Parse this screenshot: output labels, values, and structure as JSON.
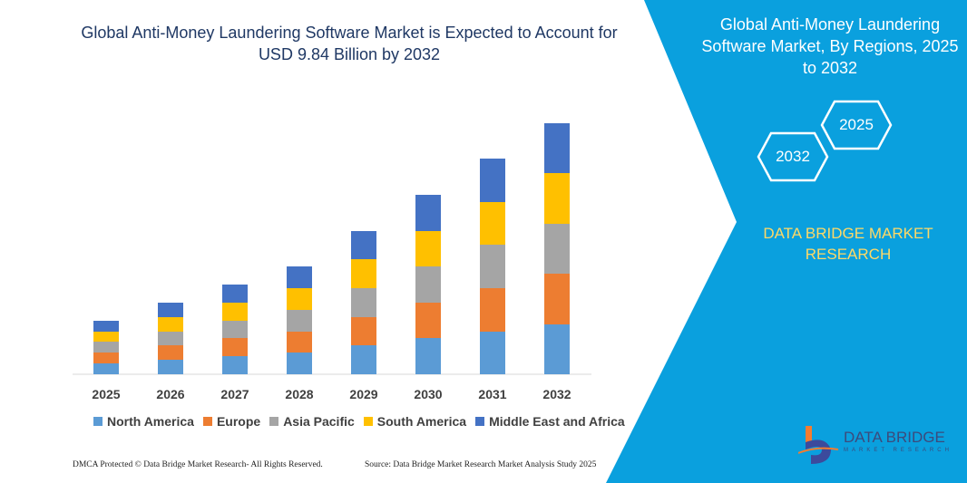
{
  "title": "Global Anti-Money Laundering Software Market is Expected to Account for USD 9.84 Billion by 2032",
  "side_panel": {
    "title": "Global Anti-Money Laundering Software Market, By Regions, 2025 to 2032",
    "hex_right": "2025",
    "hex_left": "2032",
    "brand": "DATA BRIDGE MARKET RESEARCH",
    "logo_text": "DATA BRIDGE",
    "logo_sub": "MARKET RESEARCH",
    "colors": {
      "panel": "#0aa0de",
      "brand": "#ffd966"
    }
  },
  "footer": {
    "left": "DMCA Protected © Data Bridge Market Research- All Rights Reserved.",
    "right": "Source: Data Bridge Market Research Market Analysis Study 2025"
  },
  "chart_data": {
    "type": "bar",
    "stacked": true,
    "categories": [
      "2025",
      "2026",
      "2027",
      "2028",
      "2029",
      "2030",
      "2031",
      "2032"
    ],
    "series": [
      {
        "name": "North America",
        "color": "#5b9bd5",
        "values": [
          12,
          16,
          20,
          24,
          32,
          40,
          47,
          55
        ]
      },
      {
        "name": "Europe",
        "color": "#ed7d31",
        "values": [
          12,
          16,
          20,
          23,
          31,
          39,
          48,
          56
        ]
      },
      {
        "name": "Asia Pacific",
        "color": "#a5a5a5",
        "values": [
          12,
          15,
          19,
          24,
          32,
          40,
          48,
          55
        ]
      },
      {
        "name": "South America",
        "color": "#ffc000",
        "values": [
          11,
          16,
          20,
          24,
          32,
          39,
          47,
          56
        ]
      },
      {
        "name": "Middle East and Africa",
        "color": "#4472c4",
        "values": [
          12,
          16,
          20,
          24,
          31,
          40,
          48,
          55
        ]
      }
    ],
    "y_axis_shown": false,
    "grid": false,
    "legend_position": "bottom"
  }
}
